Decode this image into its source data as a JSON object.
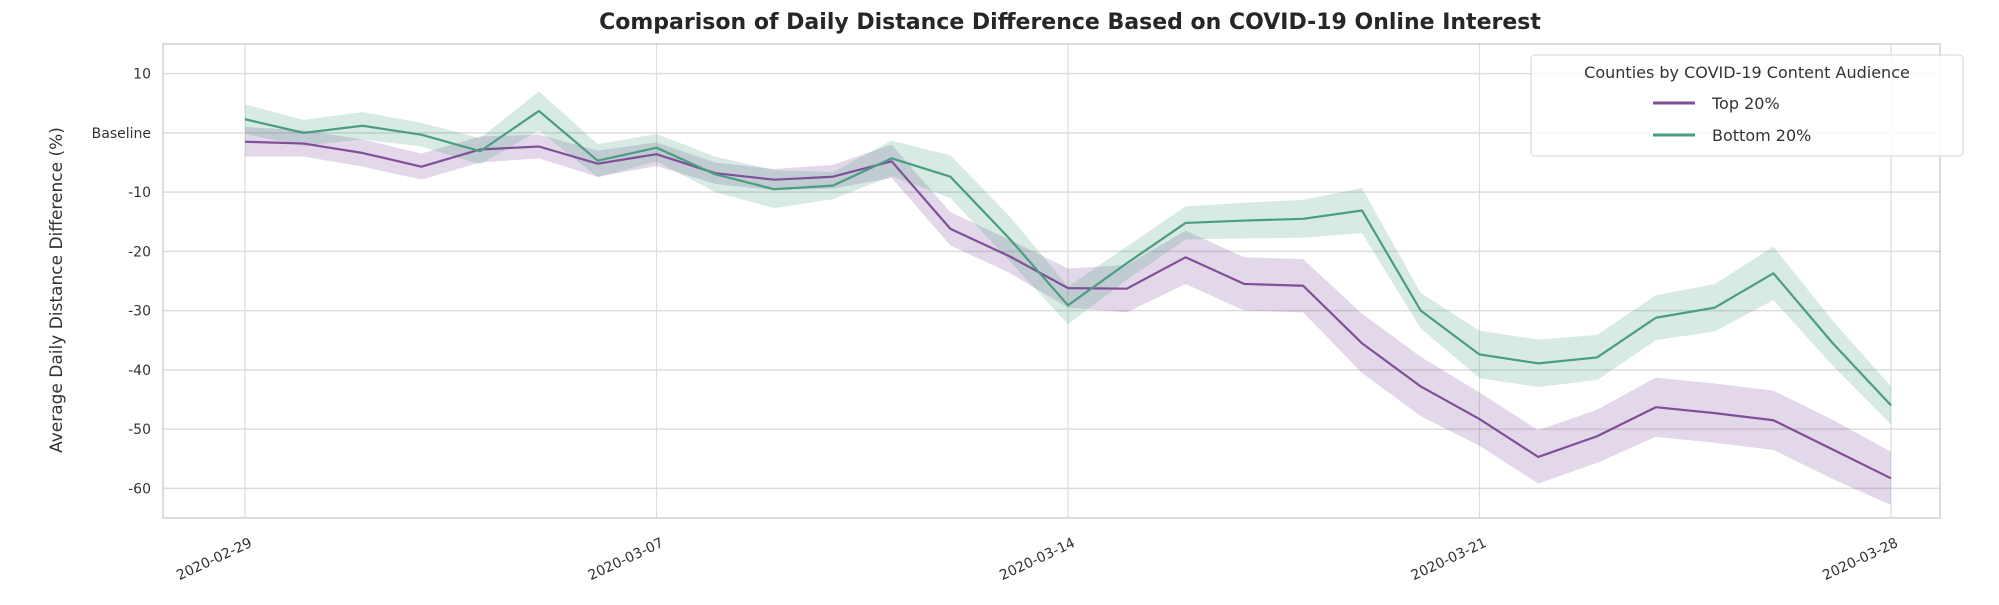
{
  "chart_data": {
    "type": "line",
    "title": "Comparison of Daily Distance Difference Based on COVID-19 Online Interest",
    "xlabel": "",
    "ylabel": "Average Daily Distance Difference (%)",
    "x": [
      "2020-02-29",
      "2020-03-01",
      "2020-03-02",
      "2020-03-03",
      "2020-03-04",
      "2020-03-05",
      "2020-03-06",
      "2020-03-07",
      "2020-03-08",
      "2020-03-09",
      "2020-03-10",
      "2020-03-11",
      "2020-03-12",
      "2020-03-13",
      "2020-03-14",
      "2020-03-15",
      "2020-03-16",
      "2020-03-17",
      "2020-03-18",
      "2020-03-19",
      "2020-03-20",
      "2020-03-21",
      "2020-03-22",
      "2020-03-23",
      "2020-03-24",
      "2020-03-25",
      "2020-03-26",
      "2020-03-27",
      "2020-03-28"
    ],
    "x_ticks": [
      "2020-02-29",
      "2020-03-07",
      "2020-03-14",
      "2020-03-21",
      "2020-03-28"
    ],
    "y_ticks": [
      {
        "value": 10,
        "label": "10"
      },
      {
        "value": 0,
        "label": "Baseline"
      },
      {
        "value": -10,
        "label": "-10"
      },
      {
        "value": -20,
        "label": "-20"
      },
      {
        "value": -30,
        "label": "-30"
      },
      {
        "value": -40,
        "label": "-40"
      },
      {
        "value": -50,
        "label": "-50"
      },
      {
        "value": -60,
        "label": "-60"
      }
    ],
    "ylim": [
      -65,
      15
    ],
    "grid": true,
    "legend": {
      "title": "Counties by COVID-19 Content Audience",
      "position": "top-right"
    },
    "series": [
      {
        "name": "Top 20%",
        "color": "#7f4f99",
        "values": [
          -1.5,
          -1.8,
          -3.4,
          -5.7,
          -2.8,
          -2.3,
          -5.2,
          -3.6,
          -6.8,
          -7.9,
          -7.4,
          -4.8,
          -16.2,
          -20.8,
          -26.2,
          -26.3,
          -21.0,
          -25.5,
          -25.8,
          -35.5,
          -42.8,
          -48.3,
          -54.7,
          -51.2,
          -46.3,
          -47.3,
          -48.5,
          -53.4,
          -58.3
        ],
        "ci_halfwidth": [
          2.5,
          2.2,
          2.3,
          2.2,
          2.2,
          2.0,
          2.2,
          2.0,
          1.8,
          1.8,
          2.0,
          2.8,
          2.8,
          2.8,
          3.3,
          4.0,
          4.5,
          4.5,
          4.5,
          5.0,
          5.0,
          4.5,
          4.5,
          4.5,
          5.0,
          5.0,
          5.0,
          5.0,
          4.5
        ]
      },
      {
        "name": "Bottom 20%",
        "color": "#4a9e80",
        "values": [
          2.3,
          0.0,
          1.2,
          -0.3,
          -3.1,
          3.7,
          -4.7,
          -2.5,
          -7.0,
          -9.5,
          -8.9,
          -4.3,
          -7.4,
          -17.8,
          -29.1,
          -22.0,
          -15.2,
          -14.8,
          -14.5,
          -13.1,
          -30.0,
          -37.4,
          -38.9,
          -37.9,
          -31.2,
          -29.5,
          -23.7,
          -35.4,
          -46.0
        ],
        "ci_halfwidth": [
          2.5,
          2.2,
          2.3,
          2.0,
          2.2,
          3.3,
          2.8,
          2.3,
          3.0,
          3.2,
          2.3,
          3.0,
          3.6,
          3.8,
          3.2,
          2.8,
          2.8,
          3.0,
          3.2,
          3.8,
          3.0,
          4.0,
          4.0,
          3.8,
          3.8,
          4.0,
          4.5,
          3.8,
          3.2
        ]
      }
    ]
  }
}
